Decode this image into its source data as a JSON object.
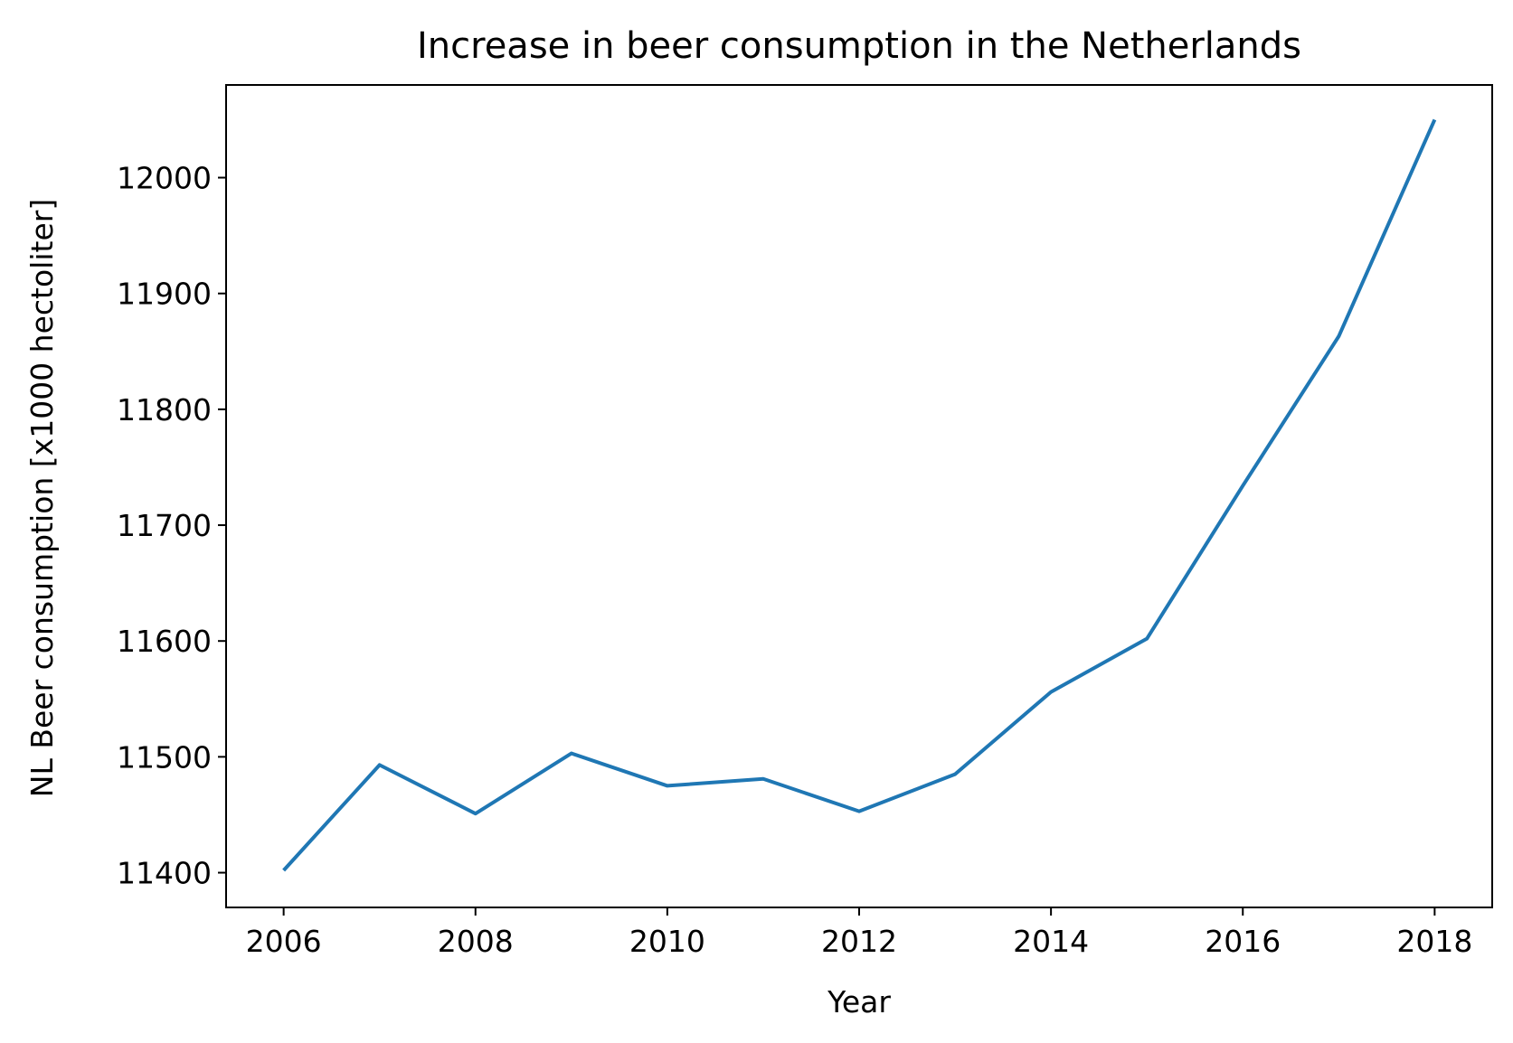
{
  "chart_data": {
    "type": "line",
    "title": "Increase in beer consumption in the Netherlands",
    "xlabel": "Year",
    "ylabel": "NL Beer consumption [x1000 hectoliter]",
    "x": [
      2006,
      2007,
      2008,
      2009,
      2010,
      2011,
      2012,
      2013,
      2014,
      2015,
      2016,
      2017,
      2018
    ],
    "series": [
      {
        "values": [
          11402,
          11493,
          11451,
          11503,
          11475,
          11481,
          11453,
          11485,
          11556,
          11602,
          11734,
          11863,
          12050
        ]
      }
    ],
    "xlim": [
      2005.4,
      2018.6
    ],
    "ylim": [
      11370,
      12080
    ],
    "xticks": [
      "2006",
      "2008",
      "2010",
      "2012",
      "2014",
      "2016",
      "2018"
    ],
    "yticks": [
      "11400",
      "11500",
      "11600",
      "11700",
      "11800",
      "11900",
      "12000"
    ],
    "line_color": "#1f77b4",
    "grid": false,
    "legend": "none"
  }
}
